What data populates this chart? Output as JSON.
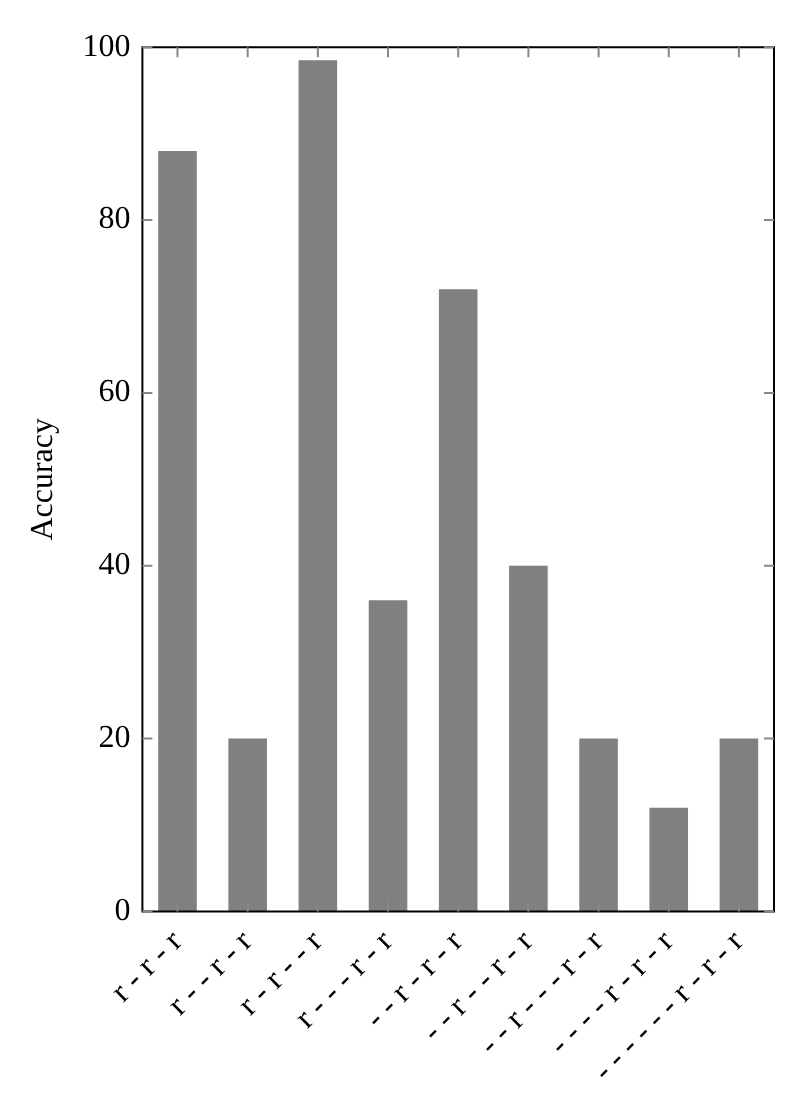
{
  "chart_data": {
    "type": "bar",
    "ylabel": "Accuracy",
    "categories": [
      "r - r - r",
      "r - - r - r",
      "r - r - - r",
      "r - - - r - r",
      "- - r - r - r",
      "- - r - - r - r",
      "- - r - - - r - r",
      "- - - - r - r - r",
      "- - - - - - r - r - r"
    ],
    "values": [
      88,
      20,
      98.5,
      36,
      72,
      40,
      20,
      12,
      20
    ],
    "color": "#808080",
    "ylim": [
      0,
      100
    ],
    "yticks": [
      0,
      20,
      40,
      60,
      80,
      100
    ],
    "grid": false,
    "legend": false
  }
}
